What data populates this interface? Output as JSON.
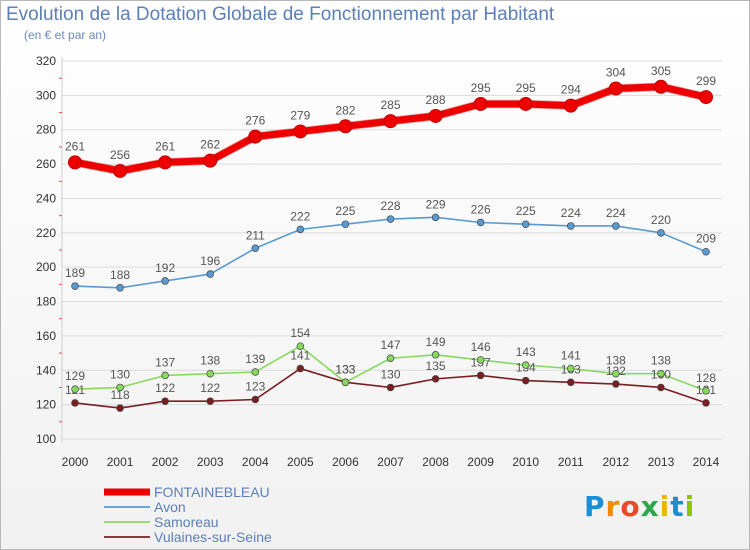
{
  "title": "Evolution de la Dotation Globale de Fonctionnement par Habitant",
  "subtitle": "(en € et par an)",
  "logo": {
    "letters": [
      "P",
      "r",
      "o",
      "x",
      "i",
      "t",
      "i"
    ],
    "colors": [
      "#1a8fd6",
      "#f08a00",
      "#e84a2a",
      "#2aa84a",
      "#e8b800",
      "#1a8fd6",
      "#8bc400"
    ]
  },
  "colors": {
    "gridline": "#dcdcdc",
    "axis_text": "#333333",
    "label_text": "#555555"
  },
  "chart_data": {
    "type": "line",
    "title": "Evolution de la Dotation Globale de Fonctionnement par Habitant",
    "ylabel": "(en € et par an)",
    "xlabel": "",
    "x": [
      "2000",
      "2001",
      "2002",
      "2003",
      "2004",
      "2005",
      "2006",
      "2007",
      "2008",
      "2009",
      "2010",
      "2011",
      "2012",
      "2013",
      "2014"
    ],
    "ylim": [
      100,
      320
    ],
    "yticks": [
      100,
      120,
      140,
      160,
      180,
      200,
      220,
      240,
      260,
      280,
      300,
      320
    ],
    "grid": true,
    "legend_position": "bottom-left",
    "series": [
      {
        "name": "FONTAINEBLEAU",
        "color": "#ee0000",
        "emphasis": true,
        "values": [
          261,
          256,
          261,
          262,
          276,
          279,
          282,
          285,
          288,
          295,
          295,
          294,
          304,
          305,
          299
        ]
      },
      {
        "name": "Avon",
        "color": "#5a9ad2",
        "emphasis": false,
        "values": [
          189,
          188,
          192,
          196,
          211,
          222,
          225,
          228,
          229,
          226,
          225,
          224,
          224,
          220,
          209
        ]
      },
      {
        "name": "Samoreau",
        "color": "#88d860",
        "emphasis": false,
        "values": [
          129,
          130,
          137,
          138,
          139,
          154,
          133,
          147,
          149,
          146,
          143,
          141,
          138,
          138,
          128
        ]
      },
      {
        "name": "Vulaines-sur-Seine",
        "color": "#7a1e22",
        "emphasis": false,
        "values": [
          121,
          118,
          122,
          122,
          123,
          141,
          133,
          130,
          135,
          137,
          134,
          133,
          132,
          130,
          121
        ]
      }
    ]
  }
}
